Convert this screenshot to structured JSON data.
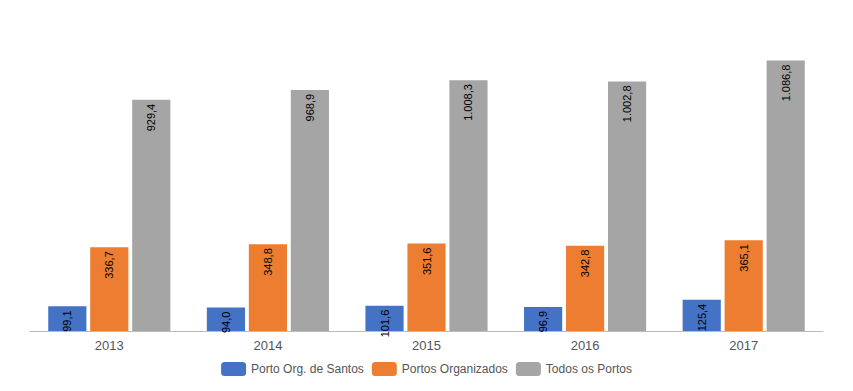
{
  "chart_data": {
    "type": "bar",
    "categories": [
      "2013",
      "2014",
      "2015",
      "2016",
      "2017"
    ],
    "series": [
      {
        "name": "Porto Org. de Santos",
        "color": "#4472C4",
        "values": [
          99.1,
          94.0,
          101.6,
          96.9,
          125.4
        ],
        "value_labels": [
          "99,1",
          "94,0",
          "101,6",
          "96,9",
          "125,4"
        ]
      },
      {
        "name": "Portos Organizados",
        "color": "#ED7D31",
        "values": [
          336.7,
          348.8,
          351.6,
          342.8,
          365.1
        ],
        "value_labels": [
          "336,7",
          "348,8",
          "351,6",
          "342,8",
          "365,1"
        ]
      },
      {
        "name": "Todos os Portos",
        "color": "#A5A5A5",
        "values": [
          929.4,
          968.9,
          1008.3,
          1002.8,
          1086.8
        ],
        "value_labels": [
          "929,4",
          "968,9",
          "1.008,3",
          "1.002,8",
          "1.086,8"
        ]
      }
    ],
    "ylim": [
      0,
      1250
    ],
    "grid": false,
    "legend": "bottom",
    "data_labels": true,
    "tick_labels": "x"
  }
}
